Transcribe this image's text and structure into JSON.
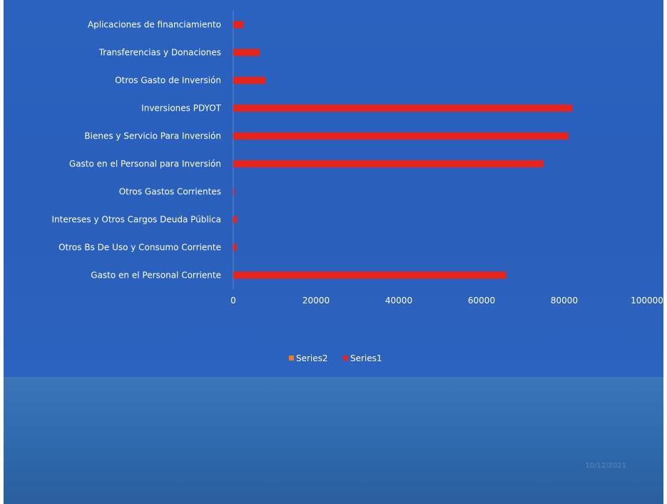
{
  "footer": {
    "date": "10/12/2021"
  },
  "chart_data": {
    "type": "bar",
    "orientation": "horizontal",
    "categories": [
      "Gasto en el Personal Corriente",
      "Otros Bs De Uso y Consumo Corriente",
      "Intereses y Otros Cargos Deuda Pública",
      "Otros Gastos Corrientes",
      "Gasto en el Personal para Inversión",
      "Bienes y Servicio Para Inversión",
      "Inversiones PDYOT",
      "Otros Gasto de Inversión",
      "Transferencias y Donaciones",
      "Aplicaciones de financiamiento"
    ],
    "series": [
      {
        "name": "Series1",
        "color": "#e8231b",
        "values": [
          66000,
          800,
          900,
          300,
          75000,
          81000,
          82000,
          7800,
          6400,
          2500
        ]
      },
      {
        "name": "Series2",
        "color": "#ee7d1c",
        "values": [
          0,
          0,
          0,
          0,
          0,
          0,
          0,
          0,
          0,
          0
        ]
      }
    ],
    "xlim": [
      0,
      100000
    ],
    "xticks": [
      0,
      20000,
      40000,
      60000,
      80000,
      100000
    ],
    "grid": false,
    "legend_position": "bottom",
    "legend_order": [
      "Series2",
      "Series1"
    ],
    "colors": {
      "background": "#2b62bf",
      "text": "#ffffff"
    }
  }
}
